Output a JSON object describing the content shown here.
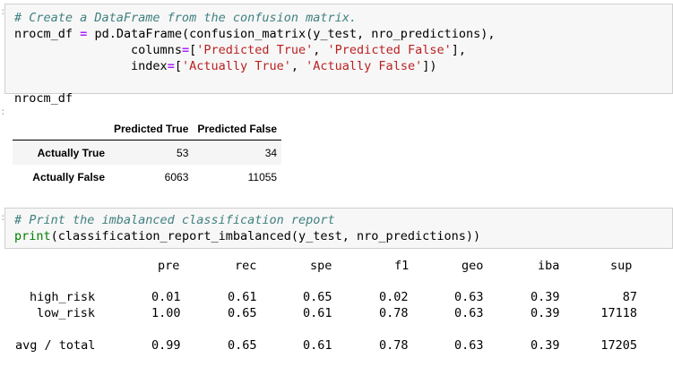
{
  "cell1": {
    "line1_comment": "# Create a DataFrame from the confusion matrix.",
    "line2_var": "nrocm_df",
    "line2_eq": "=",
    "line2_rest": " pd.DataFrame(confusion_matrix(y_test, nro_predictions),",
    "line3_kw": "columns",
    "line3_eq": "=",
    "line3_open": "[",
    "line3_s1": "'Predicted True'",
    "line3_sep": ", ",
    "line3_s2": "'Predicted False'",
    "line3_close": "],",
    "line4_kw": "index",
    "line4_eq": "=",
    "line4_open": "[",
    "line4_s1": "'Actually True'",
    "line4_sep": ", ",
    "line4_s2": "'Actually False'",
    "line4_close": "])",
    "line6": "nrocm_df"
  },
  "dataframe": {
    "columns": [
      "Predicted True",
      "Predicted False"
    ],
    "rows": [
      {
        "index": "Actually True",
        "values": [
          "53",
          "34"
        ]
      },
      {
        "index": "Actually False",
        "values": [
          "6063",
          "11055"
        ]
      }
    ]
  },
  "cell2": {
    "comment": "# Print the imbalanced classification report",
    "print_kw": "print",
    "call": "(classification_report_imbalanced(y_test, nro_predictions))"
  },
  "report": {
    "headers": [
      "pre",
      "rec",
      "spe",
      "f1",
      "geo",
      "iba",
      "sup"
    ],
    "rows": [
      {
        "label": "high_risk",
        "values": [
          "0.01",
          "0.61",
          "0.65",
          "0.02",
          "0.63",
          "0.39",
          "87"
        ]
      },
      {
        "label": "low_risk",
        "values": [
          "1.00",
          "0.65",
          "0.61",
          "0.78",
          "0.63",
          "0.39",
          "17118"
        ]
      },
      {
        "label": "avg / total",
        "values": [
          "0.99",
          "0.65",
          "0.61",
          "0.78",
          "0.63",
          "0.39",
          "17205"
        ]
      }
    ]
  },
  "colors": {
    "comment": "#408080",
    "operator": "#aa22ff",
    "string": "#ba2121",
    "builtin": "#008000",
    "input_bg": "#f7f7f7"
  }
}
